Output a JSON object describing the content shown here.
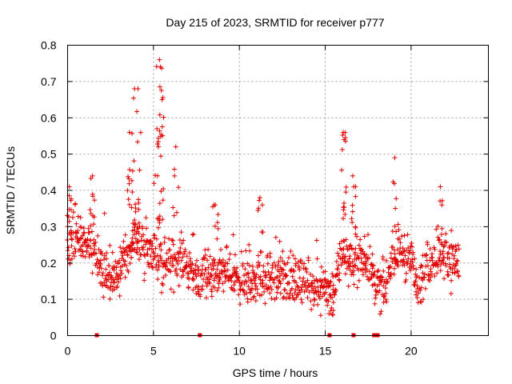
{
  "chart_data": {
    "type": "scatter",
    "title": "Day 215 of 2023, SRMTID for receiver p777",
    "xlabel": "GPS time / hours",
    "ylabel": "SRMTID / TECUs",
    "xlim": [
      0,
      24.5
    ],
    "ylim": [
      0,
      0.8
    ],
    "xticks": [
      0,
      5,
      10,
      15,
      20
    ],
    "yticks": [
      0,
      0.1,
      0.2,
      0.3,
      0.4,
      0.5,
      0.6,
      0.7,
      0.8
    ],
    "xtick_labels": [
      "0",
      "5",
      "10",
      "15",
      "20"
    ],
    "ytick_labels": [
      "0",
      "0.1",
      "0.2",
      "0.3",
      "0.4",
      "0.5",
      "0.6",
      "0.7",
      "0.8"
    ],
    "grid": true,
    "marker": "+",
    "color": "#e00000",
    "x_range_data": [
      0.0,
      22.8
    ],
    "x_sample_step": 0.045,
    "envelope": {
      "x": [
        0,
        0.5,
        1,
        1.5,
        2,
        2.5,
        3,
        3.5,
        4,
        4.5,
        5,
        5.5,
        6,
        6.5,
        7,
        7.5,
        8,
        8.5,
        9,
        9.5,
        10,
        10.5,
        11,
        11.5,
        12,
        12.5,
        13,
        13.5,
        14,
        14.5,
        15,
        15.5,
        16,
        16.5,
        17,
        17.5,
        18,
        18.5,
        19,
        19.5,
        20,
        20.5,
        21,
        21.5,
        22,
        22.5,
        22.8
      ],
      "y": [
        0.24,
        0.27,
        0.26,
        0.25,
        0.17,
        0.16,
        0.18,
        0.21,
        0.29,
        0.23,
        0.24,
        0.21,
        0.2,
        0.21,
        0.18,
        0.16,
        0.17,
        0.16,
        0.17,
        0.16,
        0.15,
        0.14,
        0.15,
        0.16,
        0.15,
        0.16,
        0.16,
        0.15,
        0.15,
        0.14,
        0.13,
        0.12,
        0.23,
        0.19,
        0.22,
        0.21,
        0.14,
        0.13,
        0.22,
        0.23,
        0.2,
        0.15,
        0.2,
        0.22,
        0.22,
        0.2,
        0.2
      ]
    },
    "spikes": [
      {
        "x": 0.1,
        "y": 0.41
      },
      {
        "x": 1.45,
        "y": 0.44
      },
      {
        "x": 3.6,
        "y": 0.56
      },
      {
        "x": 3.9,
        "y": 0.68
      },
      {
        "x": 4.1,
        "y": 0.68
      },
      {
        "x": 5.2,
        "y": 0.57
      },
      {
        "x": 5.35,
        "y": 0.76
      },
      {
        "x": 5.4,
        "y": 0.74
      },
      {
        "x": 5.5,
        "y": 0.65
      },
      {
        "x": 6.3,
        "y": 0.52
      },
      {
        "x": 16.05,
        "y": 0.56
      },
      {
        "x": 16.1,
        "y": 0.54
      },
      {
        "x": 16.6,
        "y": 0.44
      },
      {
        "x": 19.05,
        "y": 0.49
      },
      {
        "x": 21.7,
        "y": 0.41
      },
      {
        "x": 11.2,
        "y": 0.38
      },
      {
        "x": 8.6,
        "y": 0.36
      }
    ],
    "data_gaps_x": [
      1.7,
      7.7,
      15.25,
      16.65,
      17.85,
      17.95,
      18.05
    ]
  }
}
